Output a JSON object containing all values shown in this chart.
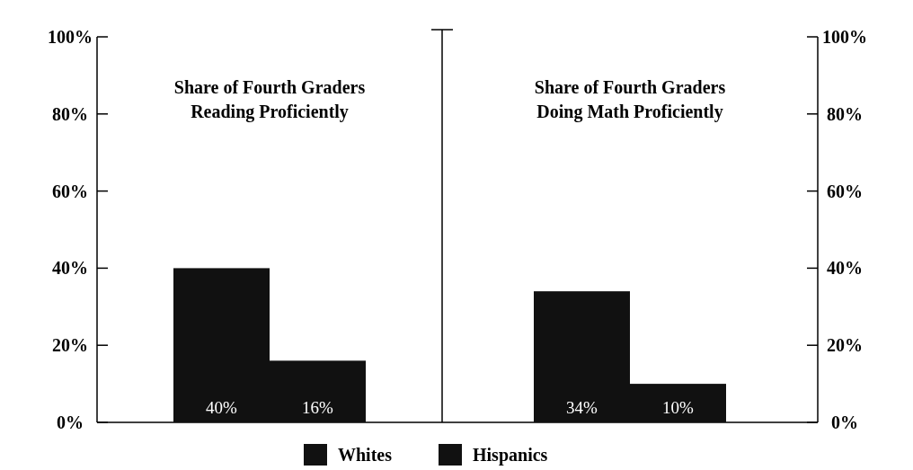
{
  "chart_data": [
    {
      "type": "bar",
      "title": "Share of Fourth Graders\nReading Proficiently",
      "categories": [
        null
      ],
      "series": [
        {
          "name": "Whites",
          "color": "#111111",
          "values": [
            40
          ],
          "value_labels": [
            "40%"
          ]
        },
        {
          "name": "Hispanics",
          "color": "#111111",
          "values": [
            16
          ],
          "value_labels": [
            "16%"
          ]
        }
      ],
      "ylim": [
        0,
        100
      ],
      "yticks": [
        {
          "value": 0,
          "label": "0%"
        },
        {
          "value": 20,
          "label": "20%"
        },
        {
          "value": 40,
          "label": "40%"
        },
        {
          "value": 60,
          "label": "60%"
        },
        {
          "value": 80,
          "label": "80%"
        },
        {
          "value": 100,
          "label": "100%"
        }
      ],
      "legend": "bottom"
    },
    {
      "type": "bar",
      "title": "Share of Fourth Graders\nDoing Math Proficiently",
      "categories": [
        null
      ],
      "series": [
        {
          "color": "#111111",
          "values": [
            34
          ],
          "value_labels": [
            "34%"
          ]
        },
        {
          "color": "#111111",
          "values": [
            10
          ],
          "value_labels": [
            "10%"
          ]
        }
      ],
      "ylim": [
        0,
        100
      ],
      "yticks": [
        {
          "value": 0,
          "label": "0%"
        },
        {
          "value": 20,
          "label": "20%"
        },
        {
          "value": 40,
          "label": "40%"
        },
        {
          "value": 60,
          "label": "60%"
        },
        {
          "value": 80,
          "label": "80%"
        },
        {
          "value": 100,
          "label": "100%"
        }
      ]
    }
  ]
}
